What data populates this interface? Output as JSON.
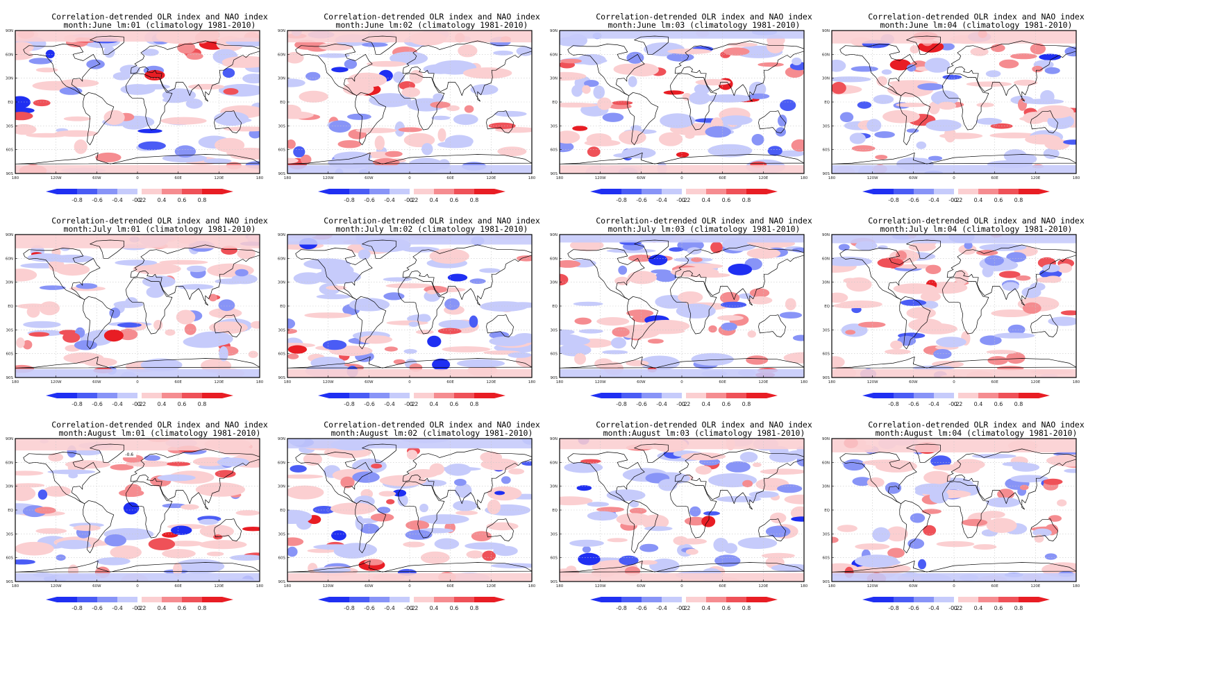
{
  "figure": {
    "panels": [
      {
        "title_line1": "Correlation-detrended OLR index and NAO index",
        "title_line2": "month:June lm:01 (climatology 1981-2010)",
        "seed": 11
      },
      {
        "title_line1": "Correlation-detrended OLR index and NAO index",
        "title_line2": "month:June lm:02 (climatology 1981-2010)",
        "seed": 23
      },
      {
        "title_line1": "Correlation-detrended OLR index and NAO index",
        "title_line2": "month:June lm:03 (climatology 1981-2010)",
        "seed": 37
      },
      {
        "title_line1": "Correlation-detrended OLR index and NAO index",
        "title_line2": "month:June lm:04 (climatology 1981-2010)",
        "seed": 41
      },
      {
        "title_line1": "Correlation-detrended OLR index and NAO index",
        "title_line2": "month:July lm:01 (climatology 1981-2010)",
        "seed": 53
      },
      {
        "title_line1": "Correlation-detrended OLR index and NAO index",
        "title_line2": "month:July lm:02 (climatology 1981-2010)",
        "seed": 67
      },
      {
        "title_line1": "Correlation-detrended OLR index and NAO index",
        "title_line2": "month:July lm:03 (climatology 1981-2010)",
        "seed": 71
      },
      {
        "title_line1": "Correlation-detrended OLR index and NAO index",
        "title_line2": "month:July lm:04 (climatology 1981-2010)",
        "seed": 83
      },
      {
        "title_line1": "Correlation-detrended OLR index and NAO index",
        "title_line2": "month:August lm:01 (climatology 1981-2010)",
        "seed": 97,
        "annotation": "-0.6"
      },
      {
        "title_line1": "Correlation-detrended OLR index and NAO index",
        "title_line2": "month:August lm:02 (climatology 1981-2010)",
        "seed": 101
      },
      {
        "title_line1": "Correlation-detrended OLR index and NAO index",
        "title_line2": "month:August lm:03 (climatology 1981-2010)",
        "seed": 113
      },
      {
        "title_line1": "Correlation-detrended OLR index and NAO index",
        "title_line2": "month:August lm:04 (climatology 1981-2010)",
        "seed": 127
      }
    ],
    "lat_labels": [
      "90N",
      "60N",
      "30N",
      "EQ",
      "30S",
      "60S",
      "90S"
    ],
    "lon_labels": [
      "180",
      "120W",
      "60W",
      "0",
      "60E",
      "120E",
      "180"
    ],
    "colorbar_labels": [
      "-0.8",
      "-0.6",
      "-0.4",
      "-0.2",
      "0.2",
      "0.4",
      "0.6",
      "0.8"
    ],
    "colors": {
      "neg": [
        "#1f2ff2",
        "#4a5cf5",
        "#8894f7",
        "#c6cbfb"
      ],
      "pos": [
        "#fbcfd1",
        "#f58c90",
        "#ef5158",
        "#e81d24"
      ],
      "frame": "#000000",
      "grid": "#c8c8c8"
    }
  }
}
